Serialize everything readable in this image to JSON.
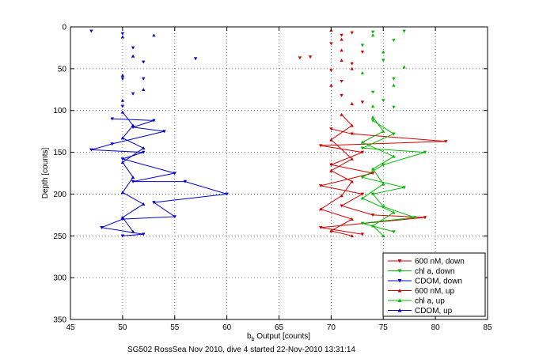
{
  "chart_data": {
    "type": "scatter",
    "title": "",
    "xlabel_main": "b",
    "xlabel_sub": "b",
    "xlabel_rest": " Output [counts]",
    "ylabel": "Depth [counts]",
    "caption": "SG502 RossSea Nov 2010, dive 4 started 22-Nov-2010 13:31:14",
    "xlim": [
      45,
      85
    ],
    "ylim": [
      0,
      350
    ],
    "y_reversed": true,
    "grid": true,
    "xticks": [
      45,
      50,
      55,
      60,
      65,
      70,
      75,
      80,
      85
    ],
    "yticks": [
      0,
      50,
      100,
      150,
      200,
      250,
      300,
      350
    ],
    "legend_position": "bottom-right",
    "series": [
      {
        "name": "600 nM, down",
        "color": "#d40000",
        "marker": "triangle-down",
        "shallow": [
          [
            68,
            36
          ],
          [
            70,
            20
          ],
          [
            70,
            52
          ],
          [
            71,
            65
          ],
          [
            71,
            82
          ],
          [
            72,
            7
          ],
          [
            72,
            44
          ],
          [
            73,
            90
          ],
          [
            73,
            30
          ],
          [
            67,
            37
          ],
          [
            71,
            10
          ]
        ],
        "deep": [
          [
            70,
            122
          ],
          [
            72,
            128
          ],
          [
            69,
            142
          ],
          [
            73,
            150
          ],
          [
            81,
            137
          ],
          [
            70,
            165
          ],
          [
            74,
            175
          ],
          [
            69,
            190
          ],
          [
            73,
            200
          ],
          [
            71,
            214
          ],
          [
            74,
            225
          ],
          [
            79,
            228
          ],
          [
            69,
            240
          ],
          [
            73,
            248
          ]
        ]
      },
      {
        "name": "chl a, down",
        "color": "#00b800",
        "marker": "triangle-down",
        "shallow": [
          [
            74,
            6
          ],
          [
            76,
            16
          ],
          [
            75,
            40
          ],
          [
            76,
            62
          ],
          [
            77,
            5
          ],
          [
            74,
            78
          ],
          [
            76,
            96
          ],
          [
            73,
            22
          ],
          [
            75,
            88
          ]
        ],
        "deep": [
          [
            74,
            112
          ],
          [
            76,
            128
          ],
          [
            73,
            145
          ],
          [
            79,
            150
          ],
          [
            75,
            165
          ],
          [
            73,
            180
          ],
          [
            77,
            192
          ],
          [
            74,
            200
          ],
          [
            75,
            215
          ],
          [
            78,
            228
          ],
          [
            73,
            235
          ],
          [
            76,
            245
          ]
        ]
      },
      {
        "name": "CDOM, down",
        "color": "#0000cc",
        "marker": "triangle-down",
        "shallow": [
          [
            47,
            5
          ],
          [
            50,
            8
          ],
          [
            51,
            25
          ],
          [
            52,
            42
          ],
          [
            57,
            38
          ],
          [
            50,
            62
          ],
          [
            51,
            80
          ],
          [
            50,
            95
          ],
          [
            52,
            62
          ]
        ],
        "deep": [
          [
            49,
            110
          ],
          [
            53,
            112
          ],
          [
            51,
            120
          ],
          [
            54,
            125
          ],
          [
            49,
            140
          ],
          [
            52,
            150
          ],
          [
            50,
            158
          ],
          [
            47,
            147
          ],
          [
            55,
            175
          ],
          [
            51,
            185
          ],
          [
            56,
            185
          ],
          [
            60,
            200
          ],
          [
            53,
            210
          ],
          [
            55,
            227
          ],
          [
            50,
            230
          ],
          [
            48,
            240
          ],
          [
            52,
            248
          ],
          [
            50,
            250
          ]
        ]
      },
      {
        "name": "600 nM, up",
        "color": "#d40000",
        "marker": "triangle-up",
        "shallow": [
          [
            70,
            4
          ],
          [
            71,
            28
          ],
          [
            72,
            50
          ],
          [
            70,
            70
          ],
          [
            72,
            92
          ],
          [
            71,
            15
          ],
          [
            71,
            40
          ]
        ],
        "deep": [
          [
            71,
            105
          ],
          [
            72,
            118
          ],
          [
            70,
            135
          ],
          [
            72,
            158
          ],
          [
            70,
            172
          ],
          [
            72,
            185
          ],
          [
            71,
            202
          ],
          [
            69,
            218
          ],
          [
            72,
            230
          ],
          [
            70,
            244
          ],
          [
            72,
            250
          ]
        ]
      },
      {
        "name": "chl a, up",
        "color": "#00b800",
        "marker": "triangle-up",
        "shallow": [
          [
            74,
            10
          ],
          [
            75,
            30
          ],
          [
            73,
            55
          ],
          [
            76,
            70
          ],
          [
            74,
            95
          ],
          [
            77,
            48
          ]
        ],
        "deep": [
          [
            74,
            108
          ],
          [
            75,
            125
          ],
          [
            73,
            138
          ],
          [
            76,
            155
          ],
          [
            74,
            170
          ],
          [
            75,
            188
          ],
          [
            73,
            205
          ],
          [
            76,
            222
          ],
          [
            74,
            238
          ],
          [
            75,
            250
          ]
        ]
      },
      {
        "name": "CDOM, up",
        "color": "#0000cc",
        "marker": "triangle-up",
        "shallow": [
          [
            50,
            12
          ],
          [
            51,
            35
          ],
          [
            50,
            58
          ],
          [
            52,
            75
          ],
          [
            50,
            88
          ],
          [
            53,
            10
          ]
        ],
        "deep": [
          [
            50,
            102
          ],
          [
            51,
            118
          ],
          [
            50,
            133
          ],
          [
            52,
            145
          ],
          [
            50,
            162
          ],
          [
            51,
            180
          ],
          [
            50,
            198
          ],
          [
            52,
            212
          ],
          [
            50,
            228
          ],
          [
            51,
            245
          ]
        ]
      }
    ]
  }
}
